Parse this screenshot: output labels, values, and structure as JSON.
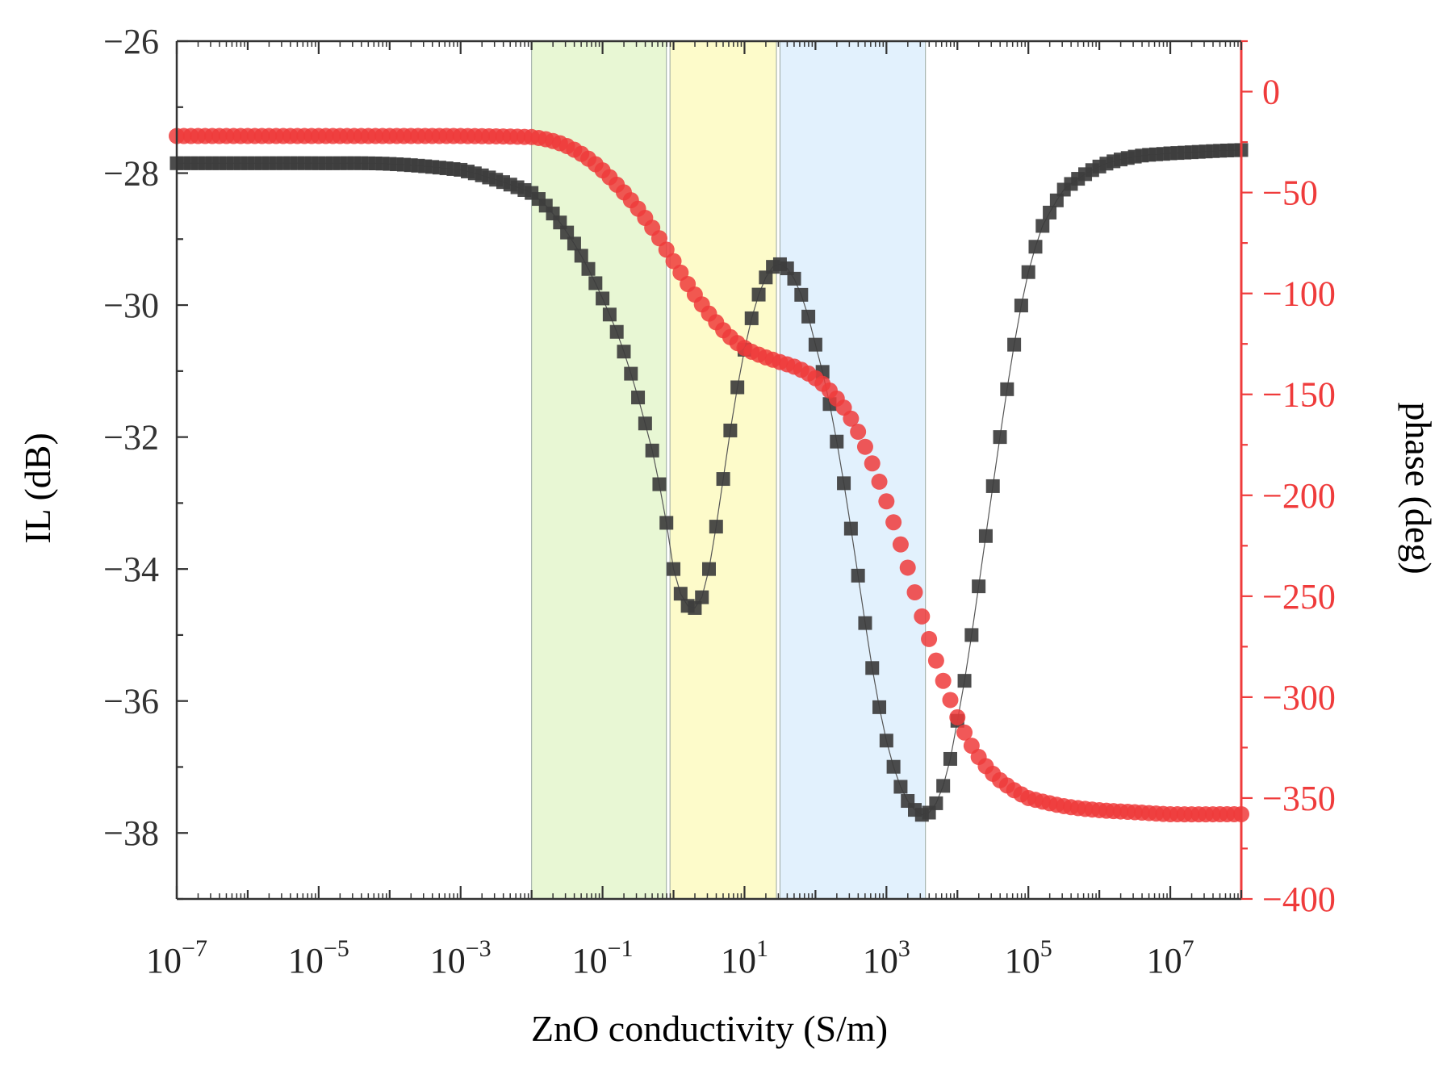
{
  "chart_data": {
    "type": "scatter",
    "title": "",
    "xlabel": "ZnO conductivity (S/m)",
    "ylabel_left": "IL (dB)",
    "ylabel_right": "phase (deg)",
    "xscale": "log",
    "xlim_log10": [
      -7,
      8
    ],
    "ylim_left": [
      -39,
      -26
    ],
    "ylim_right": [
      -400,
      25
    ],
    "x_tick_exponents": [
      "−7",
      "−5",
      "−3",
      "−1",
      "1",
      "3",
      "5",
      "7"
    ],
    "x_tick_base": "10",
    "y_left_ticks": [
      "−26",
      "−28",
      "−30",
      "−32",
      "−34",
      "−36",
      "−38"
    ],
    "y_right_ticks": [
      "0",
      "−50",
      "−100",
      "−150",
      "−200",
      "−250",
      "−300",
      "−350",
      "−400"
    ],
    "colors": {
      "il_series": "#3d3d3d",
      "phase_series": "#ef3b3b",
      "right_axis": "#ef3b3b",
      "band_green": "#d8f2b8",
      "band_yellow": "#fcf9a6",
      "band_blue": "#cfe8fb"
    },
    "bands_log10": [
      {
        "name": "band-green",
        "from": -2.0,
        "to": -0.1
      },
      {
        "name": "band-yellow",
        "from": -0.05,
        "to": 1.45
      },
      {
        "name": "band-blue",
        "from": 1.5,
        "to": 3.55
      }
    ],
    "series": [
      {
        "name": "IL",
        "axis": "left",
        "marker": "square",
        "points_log10": [
          [
            -7.0,
            -27.85
          ],
          [
            -6.0,
            -27.85
          ],
          [
            -5.0,
            -27.85
          ],
          [
            -4.0,
            -27.86
          ],
          [
            -3.0,
            -27.95
          ],
          [
            -2.5,
            -28.1
          ],
          [
            -2.0,
            -28.3
          ],
          [
            -1.75,
            -28.55
          ],
          [
            -1.5,
            -28.9
          ],
          [
            -1.25,
            -29.35
          ],
          [
            -1.0,
            -29.9
          ],
          [
            -0.75,
            -30.55
          ],
          [
            -0.5,
            -31.4
          ],
          [
            -0.25,
            -32.4
          ],
          [
            -0.1,
            -33.3
          ],
          [
            0.0,
            -34.0
          ],
          [
            0.15,
            -34.5
          ],
          [
            0.35,
            -34.55
          ],
          [
            0.5,
            -34.0
          ],
          [
            0.65,
            -33.0
          ],
          [
            0.8,
            -31.9
          ],
          [
            0.95,
            -30.95
          ],
          [
            1.1,
            -30.2
          ],
          [
            1.25,
            -29.7
          ],
          [
            1.4,
            -29.42
          ],
          [
            1.55,
            -29.4
          ],
          [
            1.7,
            -29.6
          ],
          [
            1.85,
            -30.0
          ],
          [
            2.0,
            -30.6
          ],
          [
            2.2,
            -31.5
          ],
          [
            2.4,
            -32.7
          ],
          [
            2.6,
            -34.1
          ],
          [
            2.8,
            -35.5
          ],
          [
            3.0,
            -36.6
          ],
          [
            3.2,
            -37.3
          ],
          [
            3.4,
            -37.65
          ],
          [
            3.55,
            -37.72
          ],
          [
            3.7,
            -37.55
          ],
          [
            3.85,
            -37.1
          ],
          [
            4.0,
            -36.3
          ],
          [
            4.2,
            -35.0
          ],
          [
            4.4,
            -33.5
          ],
          [
            4.6,
            -32.0
          ],
          [
            4.8,
            -30.6
          ],
          [
            5.0,
            -29.5
          ],
          [
            5.2,
            -28.8
          ],
          [
            5.5,
            -28.25
          ],
          [
            6.0,
            -27.9
          ],
          [
            6.5,
            -27.75
          ],
          [
            7.0,
            -27.7
          ],
          [
            8.0,
            -27.65
          ]
        ]
      },
      {
        "name": "phase",
        "axis": "right",
        "marker": "circle",
        "points_log10": [
          [
            -7.0,
            -22
          ],
          [
            -6.0,
            -22
          ],
          [
            -5.0,
            -22
          ],
          [
            -4.0,
            -22
          ],
          [
            -3.0,
            -22
          ],
          [
            -2.0,
            -22.5
          ],
          [
            -1.75,
            -24
          ],
          [
            -1.5,
            -27
          ],
          [
            -1.25,
            -32
          ],
          [
            -1.0,
            -39
          ],
          [
            -0.75,
            -48
          ],
          [
            -0.5,
            -58
          ],
          [
            -0.25,
            -70
          ],
          [
            0.0,
            -84
          ],
          [
            0.25,
            -98
          ],
          [
            0.5,
            -110
          ],
          [
            0.75,
            -120
          ],
          [
            1.0,
            -127
          ],
          [
            1.25,
            -131
          ],
          [
            1.5,
            -134
          ],
          [
            1.75,
            -137
          ],
          [
            2.0,
            -142
          ],
          [
            2.25,
            -150
          ],
          [
            2.5,
            -162
          ],
          [
            2.75,
            -180
          ],
          [
            3.0,
            -203
          ],
          [
            3.25,
            -230
          ],
          [
            3.5,
            -260
          ],
          [
            3.75,
            -287
          ],
          [
            4.0,
            -310
          ],
          [
            4.25,
            -327
          ],
          [
            4.5,
            -338
          ],
          [
            4.75,
            -345
          ],
          [
            5.0,
            -350
          ],
          [
            5.5,
            -354
          ],
          [
            6.0,
            -356
          ],
          [
            6.5,
            -357
          ],
          [
            7.0,
            -358
          ],
          [
            8.0,
            -358
          ]
        ]
      }
    ]
  }
}
